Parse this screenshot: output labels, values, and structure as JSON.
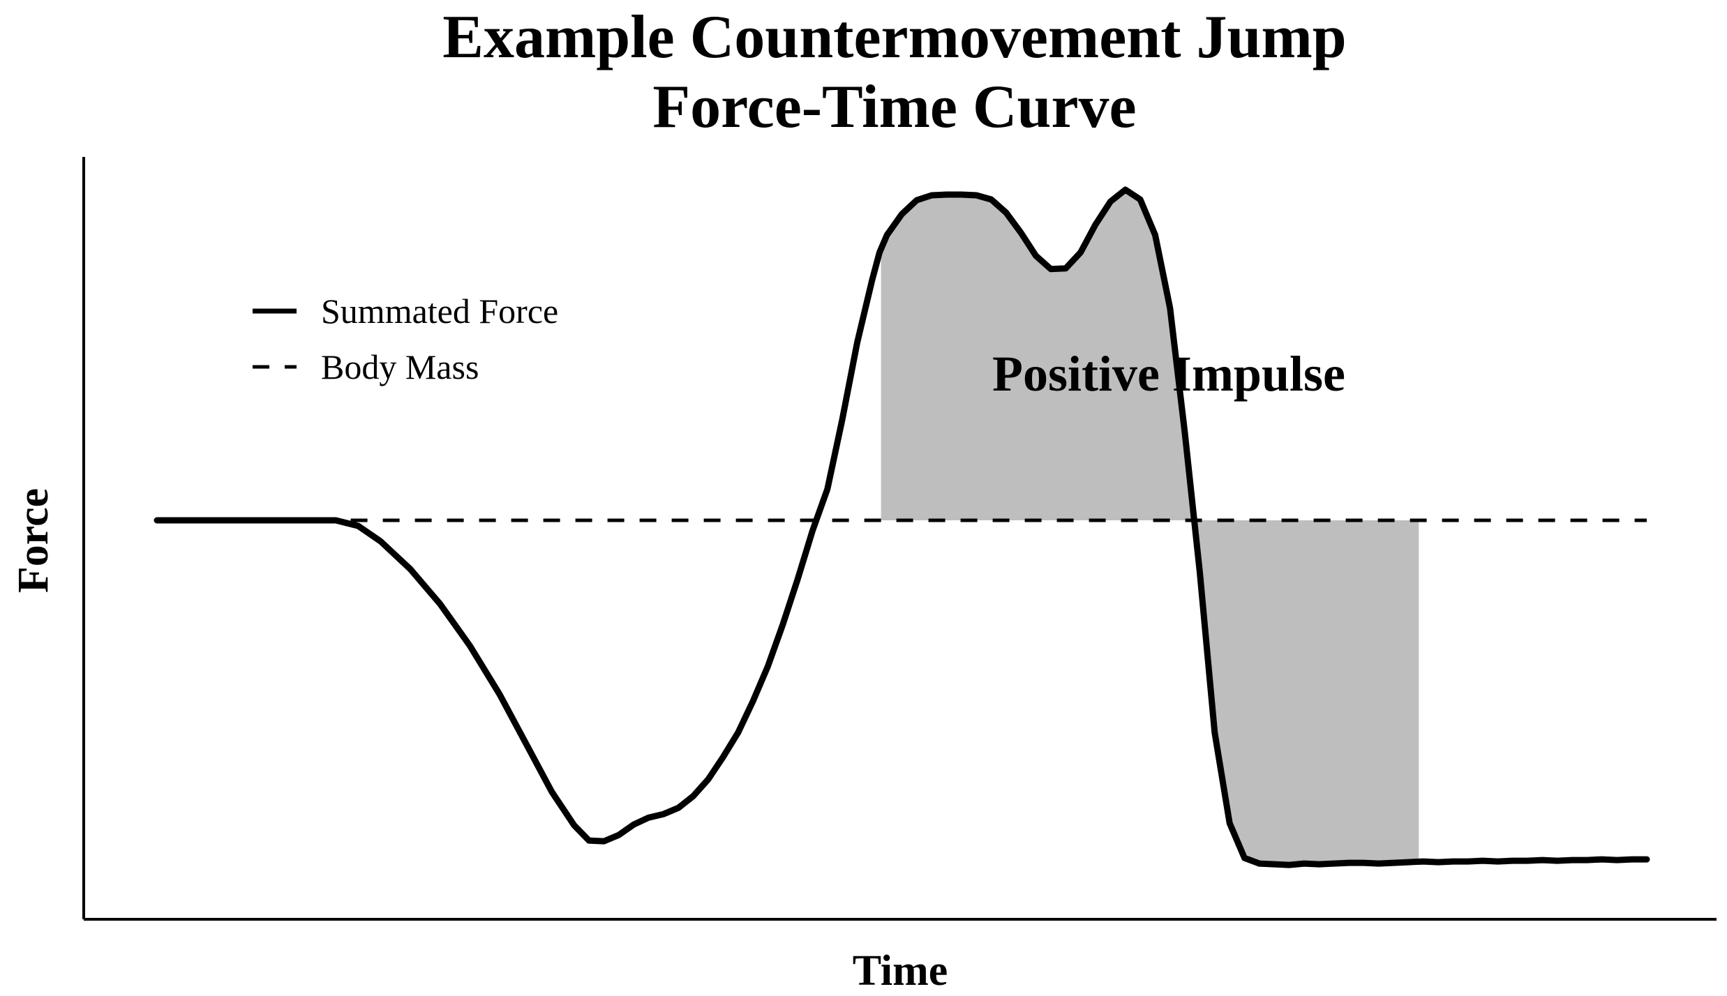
{
  "chart_data": {
    "type": "line",
    "title": [
      "Example Countermovement Jump",
      "Force-Time Curve"
    ],
    "xlabel": "Time",
    "ylabel": "Force",
    "xlim": [
      0,
      100
    ],
    "ylim": [
      0,
      100
    ],
    "grid": false,
    "ticks_labeled": false,
    "legend_position": "top-left",
    "series": [
      {
        "name": "Summated Force",
        "style": "solid",
        "color": "#000000",
        "x": [
          0,
          6,
          12,
          13.5,
          15,
          17,
          19,
          21,
          23,
          25,
          26.5,
          28,
          29,
          30,
          31,
          32,
          33,
          34,
          35,
          36,
          37,
          38,
          39,
          40,
          41,
          42,
          43,
          44,
          45,
          46,
          47,
          48,
          48.5,
          49,
          50,
          51,
          52,
          53,
          54,
          55,
          56,
          57,
          58,
          59,
          60,
          61,
          62,
          63,
          64,
          65,
          66,
          67,
          68,
          69,
          70,
          71,
          72,
          73,
          74,
          75,
          76,
          77,
          78,
          79,
          80,
          81,
          82,
          83,
          84,
          85,
          86,
          87,
          88,
          89,
          90,
          91,
          92,
          93,
          94,
          95,
          96,
          97,
          98,
          99,
          100
        ],
        "y": [
          52.5,
          52.5,
          52.5,
          51.7,
          49.5,
          45.5,
          40.5,
          34.5,
          27.5,
          19.5,
          13.5,
          8.7,
          6.5,
          6.4,
          7.3,
          8.8,
          9.8,
          10.3,
          11.2,
          12.9,
          15.3,
          18.5,
          22,
          26.5,
          31.5,
          37.5,
          44,
          51,
          57,
          67,
          78,
          87,
          91,
          93.5,
          96.5,
          98.5,
          99.2,
          99.3,
          99.3,
          99.2,
          98.6,
          96.7,
          93.8,
          90.5,
          88.6,
          88.7,
          91,
          95,
          98.3,
          100,
          98.6,
          93.5,
          83,
          65,
          45,
          22,
          9,
          4,
          3.2,
          3.1,
          3.0,
          3.2,
          3.1,
          3.2,
          3.3,
          3.3,
          3.2,
          3.3,
          3.4,
          3.5,
          3.4,
          3.5,
          3.5,
          3.6,
          3.5,
          3.6,
          3.6,
          3.7,
          3.6,
          3.7,
          3.7,
          3.8,
          3.7,
          3.8,
          3.8
        ]
      },
      {
        "name": "Body Mass",
        "style": "dashed",
        "color": "#000000",
        "x": [
          0,
          100
        ],
        "y": [
          52.5,
          52.5
        ]
      }
    ],
    "shaded_region": {
      "label": "Positive Impulse",
      "between": [
        "Summated Force",
        "Body Mass"
      ],
      "x_range": [
        48.6,
        84.7
      ],
      "fill": "#bebebe"
    }
  }
}
